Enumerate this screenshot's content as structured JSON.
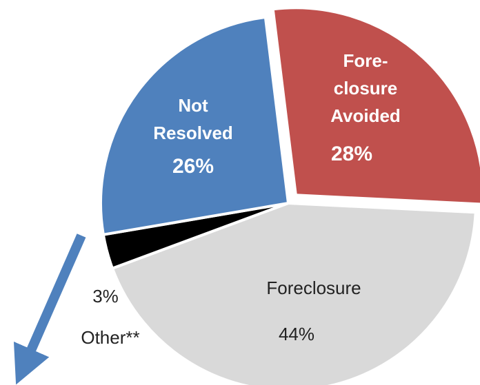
{
  "chart_data": {
    "type": "pie",
    "categories": [
      "Fore-\nclosure\nAvoided",
      "Foreclosure",
      "Other**",
      "Not\nResolved"
    ],
    "values": [
      28,
      44,
      3,
      26
    ],
    "value_labels": [
      "28%",
      "44%",
      "3%",
      "26%"
    ],
    "colors": [
      "#c0504d",
      "#d9d9d9",
      "#000000",
      "#4f81bd"
    ]
  }
}
